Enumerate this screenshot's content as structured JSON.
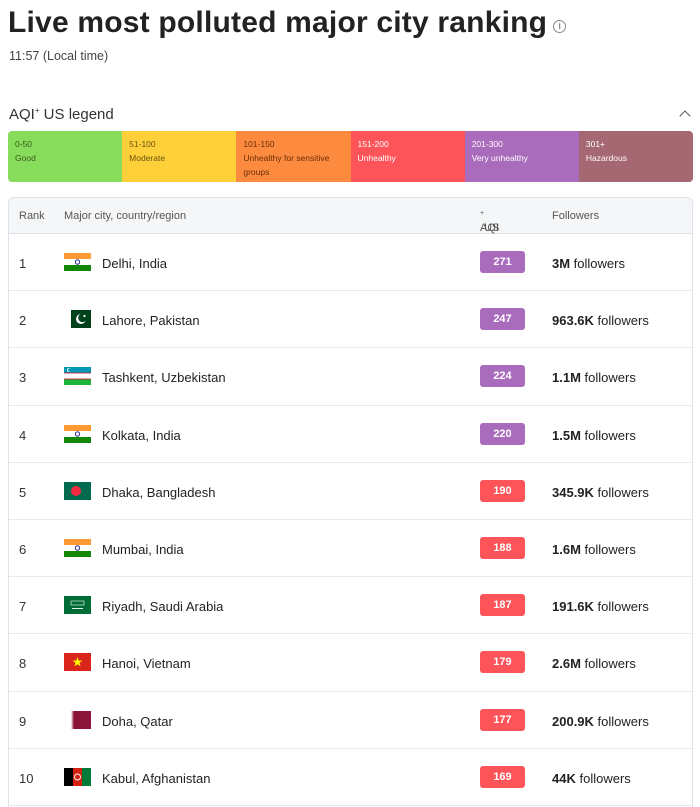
{
  "page": {
    "title": "Live most polluted major city ranking",
    "time": "11:57 (Local time)"
  },
  "legend": {
    "title": "AQI",
    "title_sup": "+",
    "title_suffix": " US legend",
    "segments": [
      {
        "range": "0-50",
        "label": "Good",
        "color": "#87dc5c",
        "text_color": "#3a5a1e"
      },
      {
        "range": "51-100",
        "label": "Moderate",
        "color": "#fdd03a",
        "text_color": "#6a5410"
      },
      {
        "range": "101-150",
        "label": "Unhealthy for sensitive groups",
        "color": "#fd8b3f",
        "text_color": "#6b2e07"
      },
      {
        "range": "151-200",
        "label": "Unhealthy",
        "color": "#fd5459",
        "text_color": "#ffffff"
      },
      {
        "range": "201-300",
        "label": "Very unhealthy",
        "color": "#a96bbc",
        "text_color": "#ffffff"
      },
      {
        "range": "301+",
        "label": "Hazardous",
        "color": "#a56771",
        "text_color": "#ffffff"
      }
    ]
  },
  "table": {
    "headers": {
      "rank": "Rank",
      "city": "Major city, country/region",
      "aqi": "AQI",
      "aqi_sup": "+",
      "aqi_suffix": " US",
      "followers": "Followers"
    },
    "rows": [
      {
        "rank": "1",
        "flag": "india",
        "city": "Delhi, India",
        "aqi": "271",
        "aqi_color": "#a96bbc",
        "followers_num": "3M",
        "followers_word": " followers"
      },
      {
        "rank": "2",
        "flag": "pakistan",
        "city": "Lahore, Pakistan",
        "aqi": "247",
        "aqi_color": "#a96bbc",
        "followers_num": "963.6K",
        "followers_word": " followers"
      },
      {
        "rank": "3",
        "flag": "uzbekistan",
        "city": "Tashkent, Uzbekistan",
        "aqi": "224",
        "aqi_color": "#a96bbc",
        "followers_num": "1.1M",
        "followers_word": " followers"
      },
      {
        "rank": "4",
        "flag": "india",
        "city": "Kolkata, India",
        "aqi": "220",
        "aqi_color": "#a96bbc",
        "followers_num": "1.5M",
        "followers_word": " followers"
      },
      {
        "rank": "5",
        "flag": "bangladesh",
        "city": "Dhaka, Bangladesh",
        "aqi": "190",
        "aqi_color": "#fd5459",
        "followers_num": "345.9K",
        "followers_word": " followers"
      },
      {
        "rank": "6",
        "flag": "india",
        "city": "Mumbai, India",
        "aqi": "188",
        "aqi_color": "#fd5459",
        "followers_num": "1.6M",
        "followers_word": " followers"
      },
      {
        "rank": "7",
        "flag": "saudi-arabia",
        "city": "Riyadh, Saudi Arabia",
        "aqi": "187",
        "aqi_color": "#fd5459",
        "followers_num": "191.6K",
        "followers_word": " followers"
      },
      {
        "rank": "8",
        "flag": "vietnam",
        "city": "Hanoi, Vietnam",
        "aqi": "179",
        "aqi_color": "#fd5459",
        "followers_num": "2.6M",
        "followers_word": " followers"
      },
      {
        "rank": "9",
        "flag": "qatar",
        "city": "Doha, Qatar",
        "aqi": "177",
        "aqi_color": "#fd5459",
        "followers_num": "200.9K",
        "followers_word": " followers"
      },
      {
        "rank": "10",
        "flag": "afghanistan",
        "city": "Kabul, Afghanistan",
        "aqi": "169",
        "aqi_color": "#fd5459",
        "followers_num": "44K",
        "followers_word": " followers"
      }
    ]
  }
}
